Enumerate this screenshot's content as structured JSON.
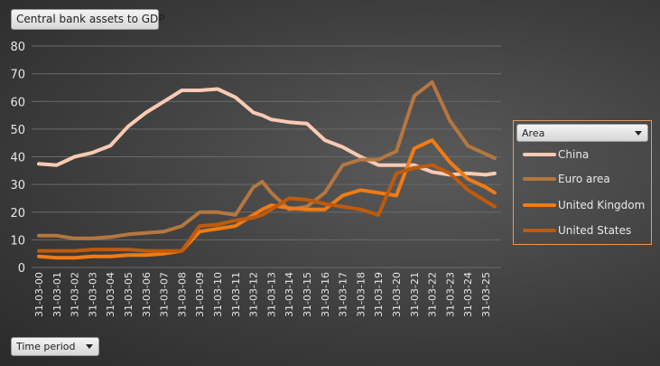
{
  "chart_data": {
    "type": "line",
    "title": "Central bank assets to GDP",
    "xlabel": "Time period",
    "ylabel": "",
    "ylim": [
      0,
      80
    ],
    "yticks": [
      0,
      10,
      20,
      30,
      40,
      50,
      60,
      70,
      80
    ],
    "xtick_labels": [
      "31-03-00",
      "31-03-01",
      "31-03-02",
      "31-03-03",
      "31-03-04",
      "31-03-05",
      "31-03-06",
      "31-03-07",
      "31-03-08",
      "31-03-09",
      "31-03-10",
      "31-03-11",
      "31-03-12",
      "31-03-13",
      "31-03-14",
      "31-03-15",
      "31-03-16",
      "31-03-17",
      "31-03-18",
      "31-03-19",
      "31-03-20",
      "31-03-21",
      "31-03-22",
      "31-03-23",
      "31-03-24",
      "31-03-25"
    ],
    "x": [
      2000,
      2001,
      2002,
      2003,
      2004,
      2005,
      2006,
      2007,
      2008,
      2009,
      2010,
      2011,
      2012,
      2012.5,
      2013,
      2014,
      2015,
      2016,
      2017,
      2018,
      2019,
      2020,
      2021,
      2022,
      2023,
      2024,
      2025,
      2025.5
    ],
    "legend_title": "Area",
    "legend_position": "right",
    "series": [
      {
        "name": "China",
        "color": "#fbcab4",
        "values": [
          37.5,
          37,
          40,
          41.5,
          44,
          51,
          56,
          60,
          64,
          64,
          64.5,
          61.5,
          56,
          55,
          53.5,
          52.5,
          52,
          46,
          43.5,
          40,
          37,
          37,
          37,
          34.5,
          33.5,
          34,
          33.5,
          34
        ]
      },
      {
        "name": "Euro area",
        "color": "#b5773f",
        "values": [
          11.5,
          11.5,
          10.5,
          10.5,
          11,
          12,
          12.5,
          13,
          15,
          20,
          20,
          19,
          29,
          31,
          27,
          21,
          22,
          27,
          37,
          39,
          39,
          42,
          62,
          67,
          53,
          44,
          41,
          39.5
        ]
      },
      {
        "name": "United Kingdom",
        "color": "#f27b12",
        "values": [
          4,
          3.5,
          3.5,
          4,
          4,
          4.5,
          4.5,
          5,
          6,
          13,
          14,
          15,
          19,
          21,
          22.5,
          21.5,
          21,
          21,
          26,
          28,
          27,
          26,
          43,
          46,
          38,
          32,
          29,
          27
        ]
      },
      {
        "name": "United States",
        "color": "#c05a0b",
        "values": [
          6,
          6,
          6,
          6.5,
          6.5,
          6.5,
          6,
          6,
          6,
          15,
          15.5,
          17,
          18,
          19,
          21,
          25,
          24.5,
          23,
          22,
          21,
          19,
          34,
          36,
          37,
          34,
          28,
          24,
          22
        ]
      }
    ]
  }
}
